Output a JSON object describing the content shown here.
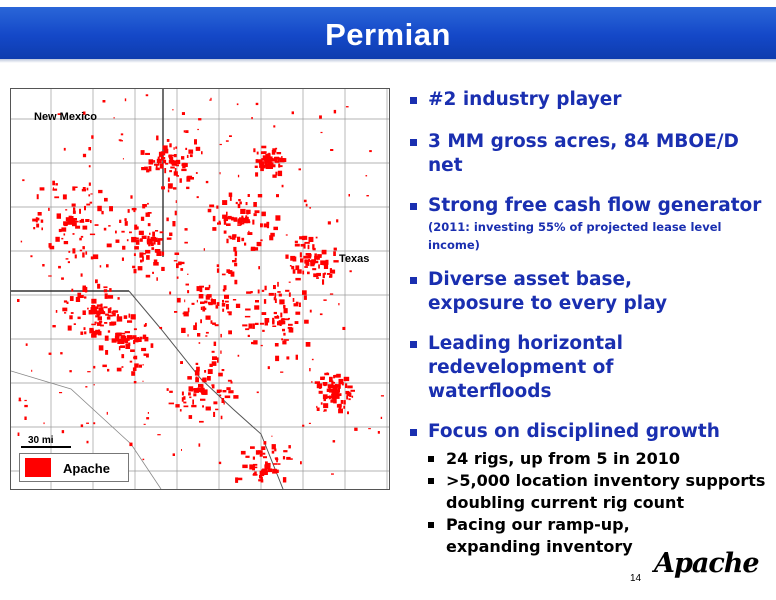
{
  "header": {
    "title": "Permian"
  },
  "map": {
    "label_new_mexico": "New Mexico",
    "label_texas": "Texas",
    "scale_label": "30 mi",
    "legend_label": "Apache",
    "legend_color": "#ff0000"
  },
  "bullets": [
    {
      "text": "#2 industry player"
    },
    {
      "text": "3 MM gross acres, 84 MBOE/D net"
    },
    {
      "text": "Strong free cash flow generator",
      "sub": "(2011: investing 55% of projected lease level income)"
    },
    {
      "text": "Diverse asset base,",
      "line2": "exposure to every play"
    },
    {
      "text": "Leading horizontal redevelopment of",
      "line2": "waterfloods"
    },
    {
      "text": "Focus on disciplined growth"
    }
  ],
  "sub_bullets": [
    {
      "text": "24 rigs, up from 5 in 2010"
    },
    {
      "text": ">5,000 location inventory supports",
      "line2": "doubling current rig count"
    },
    {
      "text": "Pacing our ramp-up,",
      "line2": "expanding inventory"
    }
  ],
  "footer": {
    "page_number": "14",
    "logo_text": "Apache"
  }
}
